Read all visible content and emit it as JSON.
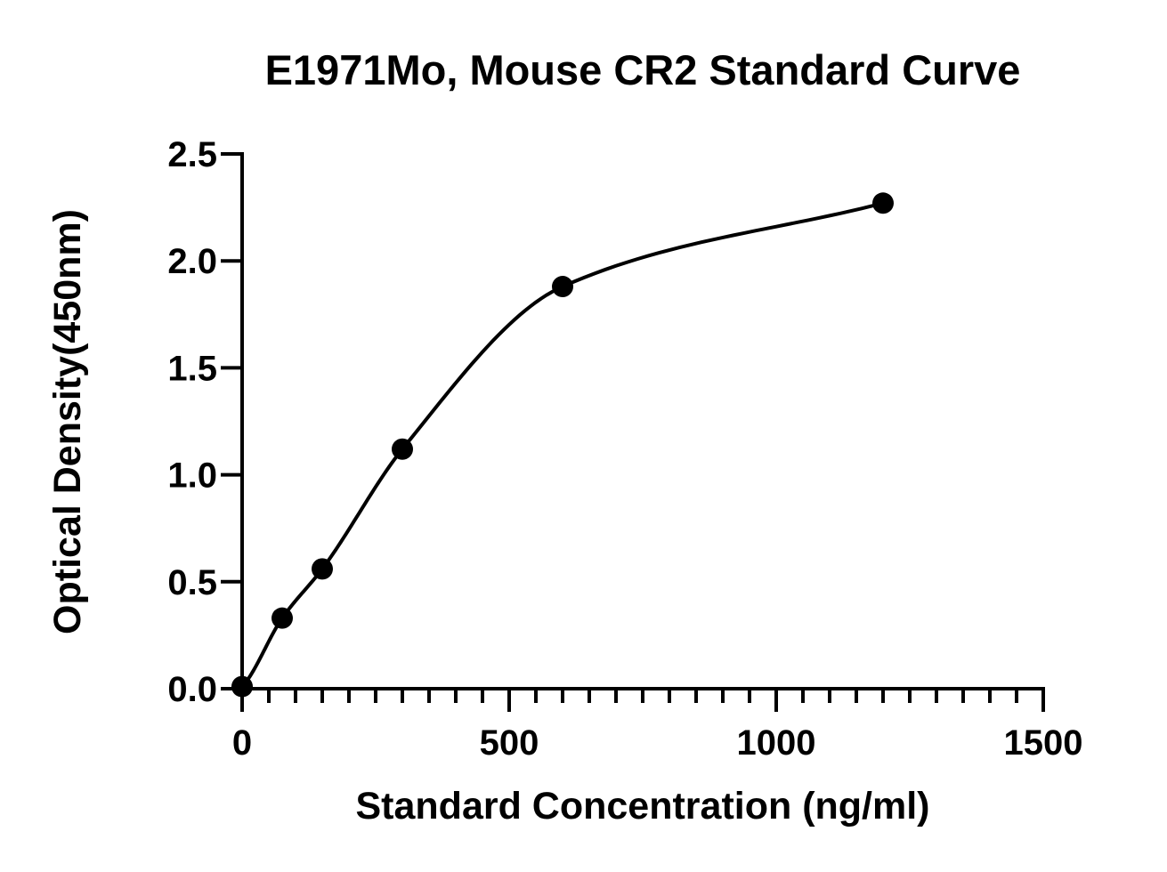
{
  "chart_data": {
    "type": "scatter",
    "title": "E1971Mo, Mouse CR2 Standard Curve",
    "xlabel": "Standard Concentration (ng/ml)",
    "ylabel": "Optical Density(450nm)",
    "xlim": [
      0,
      1500
    ],
    "ylim": [
      0,
      2.5
    ],
    "x_ticks": [
      0,
      500,
      1000,
      1500
    ],
    "x_tick_labels": [
      "0",
      "500",
      "1000",
      "1500"
    ],
    "y_ticks": [
      0,
      0.5,
      1.0,
      1.5,
      2.0,
      2.5
    ],
    "y_tick_labels": [
      "0.0",
      "0.5",
      "1.0",
      "1.5",
      "2.0",
      "2.5"
    ],
    "x_minor_step": 50,
    "grid": false,
    "legend": "none",
    "series": [
      {
        "points": [
          {
            "x": 0,
            "y": 0.01
          },
          {
            "x": 75,
            "y": 0.33
          },
          {
            "x": 150,
            "y": 0.56
          },
          {
            "x": 300,
            "y": 1.12
          },
          {
            "x": 600,
            "y": 1.88
          },
          {
            "x": 1200,
            "y": 2.27
          }
        ],
        "marker_color": "#000000",
        "fit": "sigmoid-curve"
      }
    ]
  }
}
